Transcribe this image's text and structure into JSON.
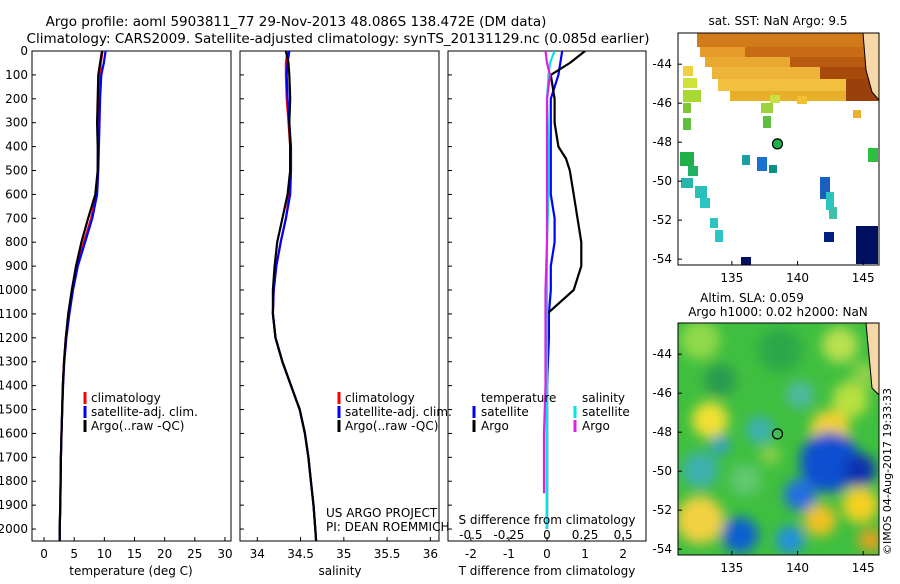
{
  "header": {
    "title_line1": "Argo profile: aoml 5903811_77 29-Nov-2013 48.086S 138.472E (DM data)",
    "title_line2": "Climatology: CARS2009. Satellite-adjusted climatology: synTS_20131129.nc (0.085d earlier)"
  },
  "depth_ticks": [
    "0",
    "100",
    "200",
    "300",
    "400",
    "500",
    "600",
    "700",
    "800",
    "900",
    "1000",
    "1100",
    "1200",
    "1300",
    "1400",
    "1500",
    "1600",
    "1700",
    "1800",
    "1900",
    "2000"
  ],
  "colors": {
    "climatology": "#ff0000",
    "satellite": "#0000ff",
    "argo": "#000000",
    "cyan": "#00e5e5",
    "magenta": "#e020e0"
  },
  "chart_data": [
    {
      "type": "line",
      "title": "",
      "xlabel": "temperature (deg C)",
      "ylabel": "depth",
      "xlim": [
        -2,
        31
      ],
      "ylim": [
        2050,
        0
      ],
      "x_ticks": [
        "0",
        "5",
        "10",
        "15",
        "20",
        "25",
        "30"
      ],
      "legend": [
        "climatology",
        "satellite-adj. clim.",
        "Argo(..raw -QC)"
      ],
      "series": [
        {
          "name": "climatology",
          "depth": [
            0,
            50,
            100,
            200,
            300,
            400,
            500,
            600,
            700,
            800,
            900,
            1000,
            1100,
            1200,
            1300,
            1400,
            1500,
            1600,
            1700,
            1800,
            1900,
            2000,
            2050
          ],
          "values": [
            9.7,
            9.4,
            9.3,
            9.2,
            9.1,
            9.0,
            8.9,
            8.7,
            7.8,
            6.6,
            5.5,
            4.7,
            4.1,
            3.6,
            3.3,
            3.1,
            3.0,
            2.9,
            2.8,
            2.75,
            2.7,
            2.6,
            2.6
          ]
        },
        {
          "name": "satellite-adj. clim.",
          "depth": [
            0,
            50,
            100,
            200,
            300,
            400,
            500,
            600,
            700,
            800,
            900,
            1000,
            1100,
            1200,
            1300,
            1400,
            1500,
            1600,
            1700,
            1800,
            1900,
            2000,
            2050
          ],
          "values": [
            10.2,
            9.9,
            9.5,
            9.3,
            9.2,
            9.1,
            9.0,
            8.8,
            8.0,
            6.8,
            5.6,
            4.8,
            4.2,
            3.7,
            3.35,
            3.15,
            3.0,
            2.9,
            2.8,
            2.75,
            2.7,
            2.6,
            2.6
          ]
        },
        {
          "name": "Argo(..raw -QC)",
          "depth": [
            0,
            50,
            100,
            200,
            300,
            400,
            500,
            600,
            700,
            800,
            900,
            1000,
            1100,
            1200,
            1300,
            1400,
            1500,
            1600,
            1700,
            1800,
            1900,
            2000,
            2050
          ],
          "values": [
            9.6,
            9.3,
            9.0,
            8.9,
            8.8,
            8.9,
            8.9,
            8.5,
            7.3,
            6.2,
            5.3,
            4.6,
            4.0,
            3.6,
            3.3,
            3.1,
            3.0,
            2.9,
            2.8,
            2.75,
            2.7,
            2.6,
            2.6
          ]
        }
      ],
      "note_lines": []
    },
    {
      "type": "line",
      "title": "",
      "xlabel": "salinity",
      "ylabel": "depth",
      "xlim": [
        33.8,
        36.1
      ],
      "ylim": [
        2050,
        0
      ],
      "x_ticks": [
        "34",
        "34.5",
        "35",
        "35.5",
        "36"
      ],
      "legend": [
        "climatology",
        "satellite-adj. clim.",
        "Argo(..raw -QC)"
      ],
      "series": [
        {
          "name": "climatology",
          "depth": [
            0,
            50,
            100,
            200,
            300,
            400,
            500,
            600,
            700,
            800,
            900,
            1000,
            1100,
            1200,
            1300,
            1400,
            1500,
            1600,
            1700,
            1800,
            1900,
            2000,
            2050
          ],
          "values": [
            34.35,
            34.33,
            34.33,
            34.34,
            34.36,
            34.38,
            34.38,
            34.37,
            34.33,
            34.27,
            34.22,
            34.19,
            34.18,
            34.21,
            34.29,
            34.39,
            34.49,
            34.55,
            34.59,
            34.62,
            34.65,
            34.67,
            34.68
          ]
        },
        {
          "name": "satellite-adj. clim.",
          "depth": [
            0,
            50,
            100,
            200,
            300,
            400,
            500,
            600,
            700,
            800,
            900,
            1000,
            1100,
            1200,
            1300,
            1400,
            1500,
            1600,
            1700,
            1800,
            1900,
            2000,
            2050
          ],
          "values": [
            34.37,
            34.35,
            34.34,
            34.35,
            34.37,
            34.39,
            34.39,
            34.38,
            34.33,
            34.27,
            34.22,
            34.19,
            34.18,
            34.21,
            34.29,
            34.39,
            34.49,
            34.55,
            34.59,
            34.62,
            34.65,
            34.67,
            34.68
          ]
        },
        {
          "name": "Argo(..raw -QC)",
          "depth": [
            0,
            50,
            100,
            200,
            300,
            400,
            500,
            600,
            700,
            800,
            900,
            1000,
            1100,
            1200,
            1300,
            1400,
            1500,
            1600,
            1700,
            1800,
            1900,
            2000,
            2050
          ],
          "values": [
            34.33,
            34.36,
            34.37,
            34.38,
            34.37,
            34.38,
            34.38,
            34.35,
            34.29,
            34.23,
            34.2,
            34.18,
            34.18,
            34.21,
            34.29,
            34.39,
            34.49,
            34.55,
            34.59,
            34.62,
            34.65,
            34.67,
            34.68
          ]
        }
      ],
      "note_lines": [
        "US ARGO PROJECT",
        "PI: DEAN ROEMMICH"
      ]
    },
    {
      "type": "line",
      "title": "",
      "xlabel": "T difference from climatology",
      "xlabel_top": "S difference from climatology",
      "ylabel": "depth",
      "xlim": [
        -2.6,
        2.6
      ],
      "ylim": [
        2050,
        0
      ],
      "x_ticks": [
        "-2",
        "-1",
        "0",
        "1",
        "2"
      ],
      "x_ticks_top": [
        "-0.5",
        "-0.25",
        "0",
        "0.25",
        "0.5"
      ],
      "legend_group_a": {
        "title": "temperature",
        "items": [
          "satellite",
          "Argo"
        ]
      },
      "legend_group_b": {
        "title": "salinity",
        "items": [
          "satellite",
          "Argo"
        ]
      },
      "series": [
        {
          "name": "temperature satellite",
          "depth": [
            0,
            100,
            200,
            300,
            400,
            500,
            600,
            700,
            800,
            900,
            1000,
            1100,
            1200,
            1400,
            1600,
            1800,
            2000
          ],
          "values": [
            0.4,
            0.3,
            0.1,
            0.1,
            0.1,
            0.1,
            0.1,
            0.2,
            0.2,
            0.1,
            0.1,
            0.05,
            0.05,
            0.0,
            0.0,
            0.0,
            0.0
          ]
        },
        {
          "name": "temperature Argo",
          "depth": [
            0,
            50,
            100,
            200,
            300,
            400,
            450,
            500,
            600,
            700,
            800,
            900,
            1000,
            1100,
            1200,
            1400,
            1600,
            1800,
            2000
          ],
          "values": [
            1.0,
            0.6,
            0.1,
            0.2,
            0.2,
            0.3,
            0.5,
            0.6,
            0.7,
            0.8,
            0.9,
            0.9,
            0.7,
            0.0,
            0.0,
            0.0,
            0.0,
            0.0,
            0.0
          ]
        },
        {
          "name": "salinity satellite",
          "depth": [
            0,
            50,
            100,
            200,
            400,
            600,
            800,
            1000,
            1200,
            1400,
            1600,
            1800,
            2000
          ],
          "values": [
            0.05,
            0.02,
            0.01,
            0.0,
            0.01,
            0.01,
            0.0,
            0.0,
            0.0,
            0.0,
            0.0,
            0.0,
            0.0
          ]
        },
        {
          "name": "salinity Argo",
          "depth": [
            0,
            50,
            100,
            200,
            400,
            600,
            800,
            1000,
            1200,
            1400,
            1600,
            1800,
            1850
          ],
          "values": [
            -0.01,
            0.0,
            0.02,
            0.0,
            0.0,
            0.0,
            0.0,
            -0.01,
            -0.01,
            -0.01,
            -0.02,
            -0.02,
            -0.02
          ]
        }
      ],
      "note_lines": []
    }
  ],
  "sst_map": {
    "title": "sat. SST: NaN Argo: 9.5",
    "lat_ticks": [
      "-44",
      "-46",
      "-48",
      "-50",
      "-52",
      "-54"
    ],
    "lon_ticks": [
      "135",
      "140",
      "145"
    ],
    "argo_lon": 138.472,
    "argo_lat": -48.086
  },
  "sla_map": {
    "title_line1": "Altim. SLA: 0.059",
    "title_line2": "Argo h1000: 0.02 h2000: NaN",
    "lat_ticks": [
      "-44",
      "-46",
      "-48",
      "-50",
      "-52",
      "-54"
    ],
    "lon_ticks": [
      "135",
      "140",
      "145"
    ],
    "argo_lon": 138.472,
    "argo_lat": -48.086
  },
  "watermark": "©IMOS 04-Aug-2017 19:33:33"
}
